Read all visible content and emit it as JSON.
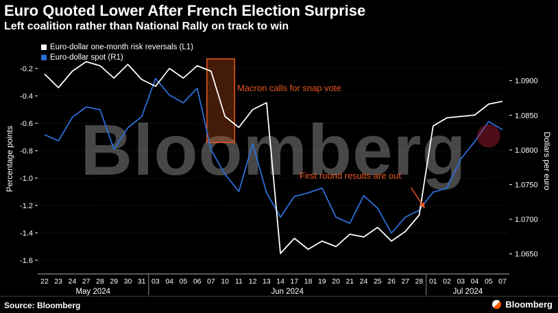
{
  "header": {
    "title": "Euro Quoted Lower After French Election Surprise",
    "subtitle": "Left coalition rather than National Rally on track to win"
  },
  "legend": [
    {
      "label": "Euro-dollar one-month risk reversals (L1)",
      "color": "#ffffff"
    },
    {
      "label": "Euro-dollar spot (R1)",
      "color": "#2b6fd8"
    }
  ],
  "watermark": "Bloomberg",
  "footer": {
    "source": "Source: Bloomberg",
    "logo": "Bloomberg"
  },
  "chart_data": {
    "type": "line",
    "title": "Euro Quoted Lower After French Election Surprise",
    "subtitle": "Left coalition rather than National Rally on track to win",
    "x_labels": [
      "22",
      "23",
      "24",
      "27",
      "28",
      "29",
      "30",
      "31",
      "03",
      "04",
      "05",
      "06",
      "07",
      "10",
      "11",
      "12",
      "13",
      "14",
      "17",
      "18",
      "19",
      "20",
      "21",
      "24",
      "25",
      "26",
      "27",
      "28",
      "01",
      "02",
      "03",
      "04",
      "05",
      "07"
    ],
    "month_groups": [
      {
        "label": "May 2024",
        "start": 0,
        "end": 7
      },
      {
        "label": "Jun 2024",
        "start": 8,
        "end": 27
      },
      {
        "label": "Jul 2024",
        "start": 28,
        "end": 33
      }
    ],
    "left_axis": {
      "title": "Percentage points",
      "ticks": [
        "-0.2",
        "-0.4",
        "-0.6",
        "-0.8",
        "-1.0",
        "-1.2",
        "-1.4",
        "-1.6"
      ],
      "max": 0.0,
      "min": -1.7
    },
    "right_axis": {
      "title": "Dollars per euro",
      "ticks": [
        "1.0900",
        "1.0850",
        "1.0800",
        "1.0750",
        "1.0700",
        "1.0650"
      ],
      "max": 1.0957,
      "min": 1.0621
    },
    "grid": "horizontal-dotted",
    "legend_position": "top-left",
    "series": [
      {
        "name": "Euro-dollar one-month risk reversals (L1)",
        "axis": "left",
        "color": "#ffffff",
        "values": [
          -0.24,
          -0.34,
          -0.22,
          -0.15,
          -0.18,
          -0.27,
          -0.17,
          -0.28,
          -0.33,
          -0.2,
          -0.27,
          -0.18,
          -0.22,
          -0.55,
          -0.63,
          -0.5,
          -0.45,
          -1.55,
          -1.44,
          -1.52,
          -1.46,
          -1.5,
          -1.41,
          -1.43,
          -1.36,
          -1.46,
          -1.39,
          -1.27,
          -0.62,
          -0.56,
          -0.55,
          -0.54,
          -0.46,
          -0.44
        ]
      },
      {
        "name": "Euro-dollar spot (R1)",
        "axis": "right",
        "color": "#2b6fd8",
        "values": [
          1.0822,
          1.0813,
          1.0847,
          1.0862,
          1.0858,
          1.0801,
          1.0832,
          1.0848,
          1.0903,
          1.0879,
          1.0868,
          1.0889,
          1.08,
          1.0765,
          1.074,
          1.0809,
          1.0738,
          1.0703,
          1.0733,
          1.0738,
          1.0745,
          1.0703,
          1.0694,
          1.0734,
          1.0716,
          1.068,
          1.0703,
          1.0713,
          1.0739,
          1.0745,
          1.0787,
          1.0812,
          1.0841,
          1.0829
        ]
      }
    ],
    "annotations": [
      {
        "type": "highlight-box",
        "label": "Macron calls for snap vote",
        "x_start_index": 11.7,
        "x_end_index": 13.7,
        "y_top": -0.13,
        "y_bottom": -0.74,
        "color": "#e8561e"
      },
      {
        "type": "arrow-label",
        "label": "First round results are out",
        "anchor_index": 27.4,
        "anchor_value_left": -1.22,
        "color": "#e8561e"
      },
      {
        "type": "glow",
        "index": 32,
        "value_right": 1.082,
        "radius": 17,
        "color": "rgba(170,30,55,0.45)"
      }
    ]
  }
}
